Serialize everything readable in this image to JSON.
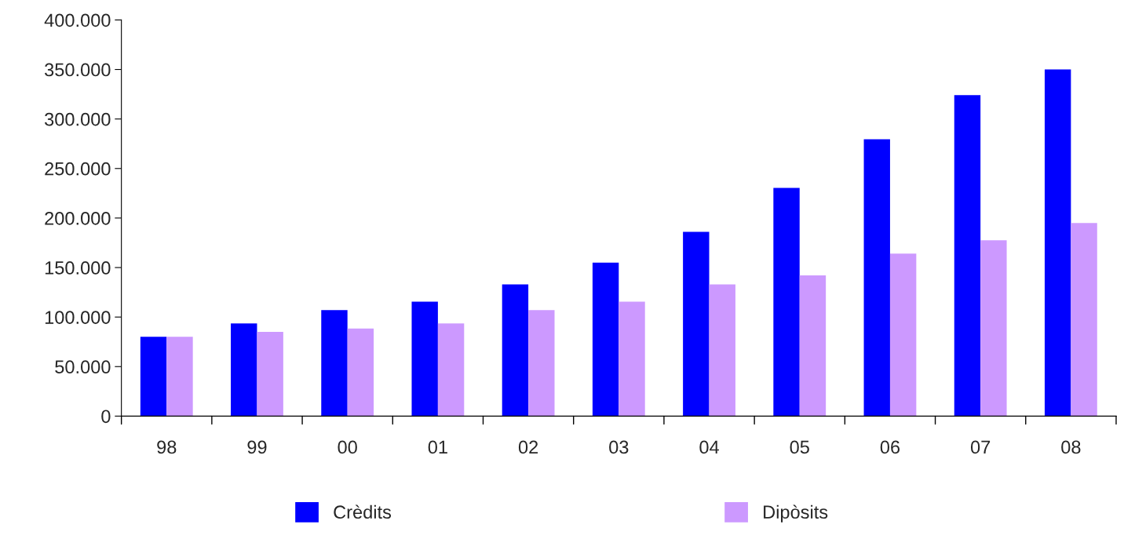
{
  "chart_data": {
    "type": "bar",
    "categories": [
      "98",
      "99",
      "00",
      "01",
      "02",
      "03",
      "04",
      "05",
      "06",
      "07",
      "08"
    ],
    "series": [
      {
        "name": "Crèdits",
        "color": "#0000ff",
        "values": [
          80000,
          93500,
          107000,
          115500,
          133000,
          155000,
          186000,
          230500,
          279500,
          324000,
          350000
        ]
      },
      {
        "name": "Dipòsits",
        "color": "#cc99ff",
        "values": [
          80000,
          85000,
          88500,
          93500,
          107000,
          115500,
          133000,
          142000,
          164000,
          177500,
          195000
        ]
      }
    ],
    "ylim": [
      0,
      400000
    ],
    "yticks": [
      0,
      {
        "value": 50000,
        "label": "50.000"
      },
      {
        "value": 100000,
        "label": "100.000"
      },
      {
        "value": 150000,
        "label": "150.000"
      },
      {
        "value": 200000,
        "label": "200.000"
      },
      {
        "value": 250000,
        "label": "250.000"
      },
      {
        "value": 300000,
        "label": "300.000"
      },
      {
        "value": 350000,
        "label": "350.000"
      },
      {
        "value": 400000,
        "label": "400.000"
      }
    ],
    "grid": false,
    "legend": "bottom"
  }
}
